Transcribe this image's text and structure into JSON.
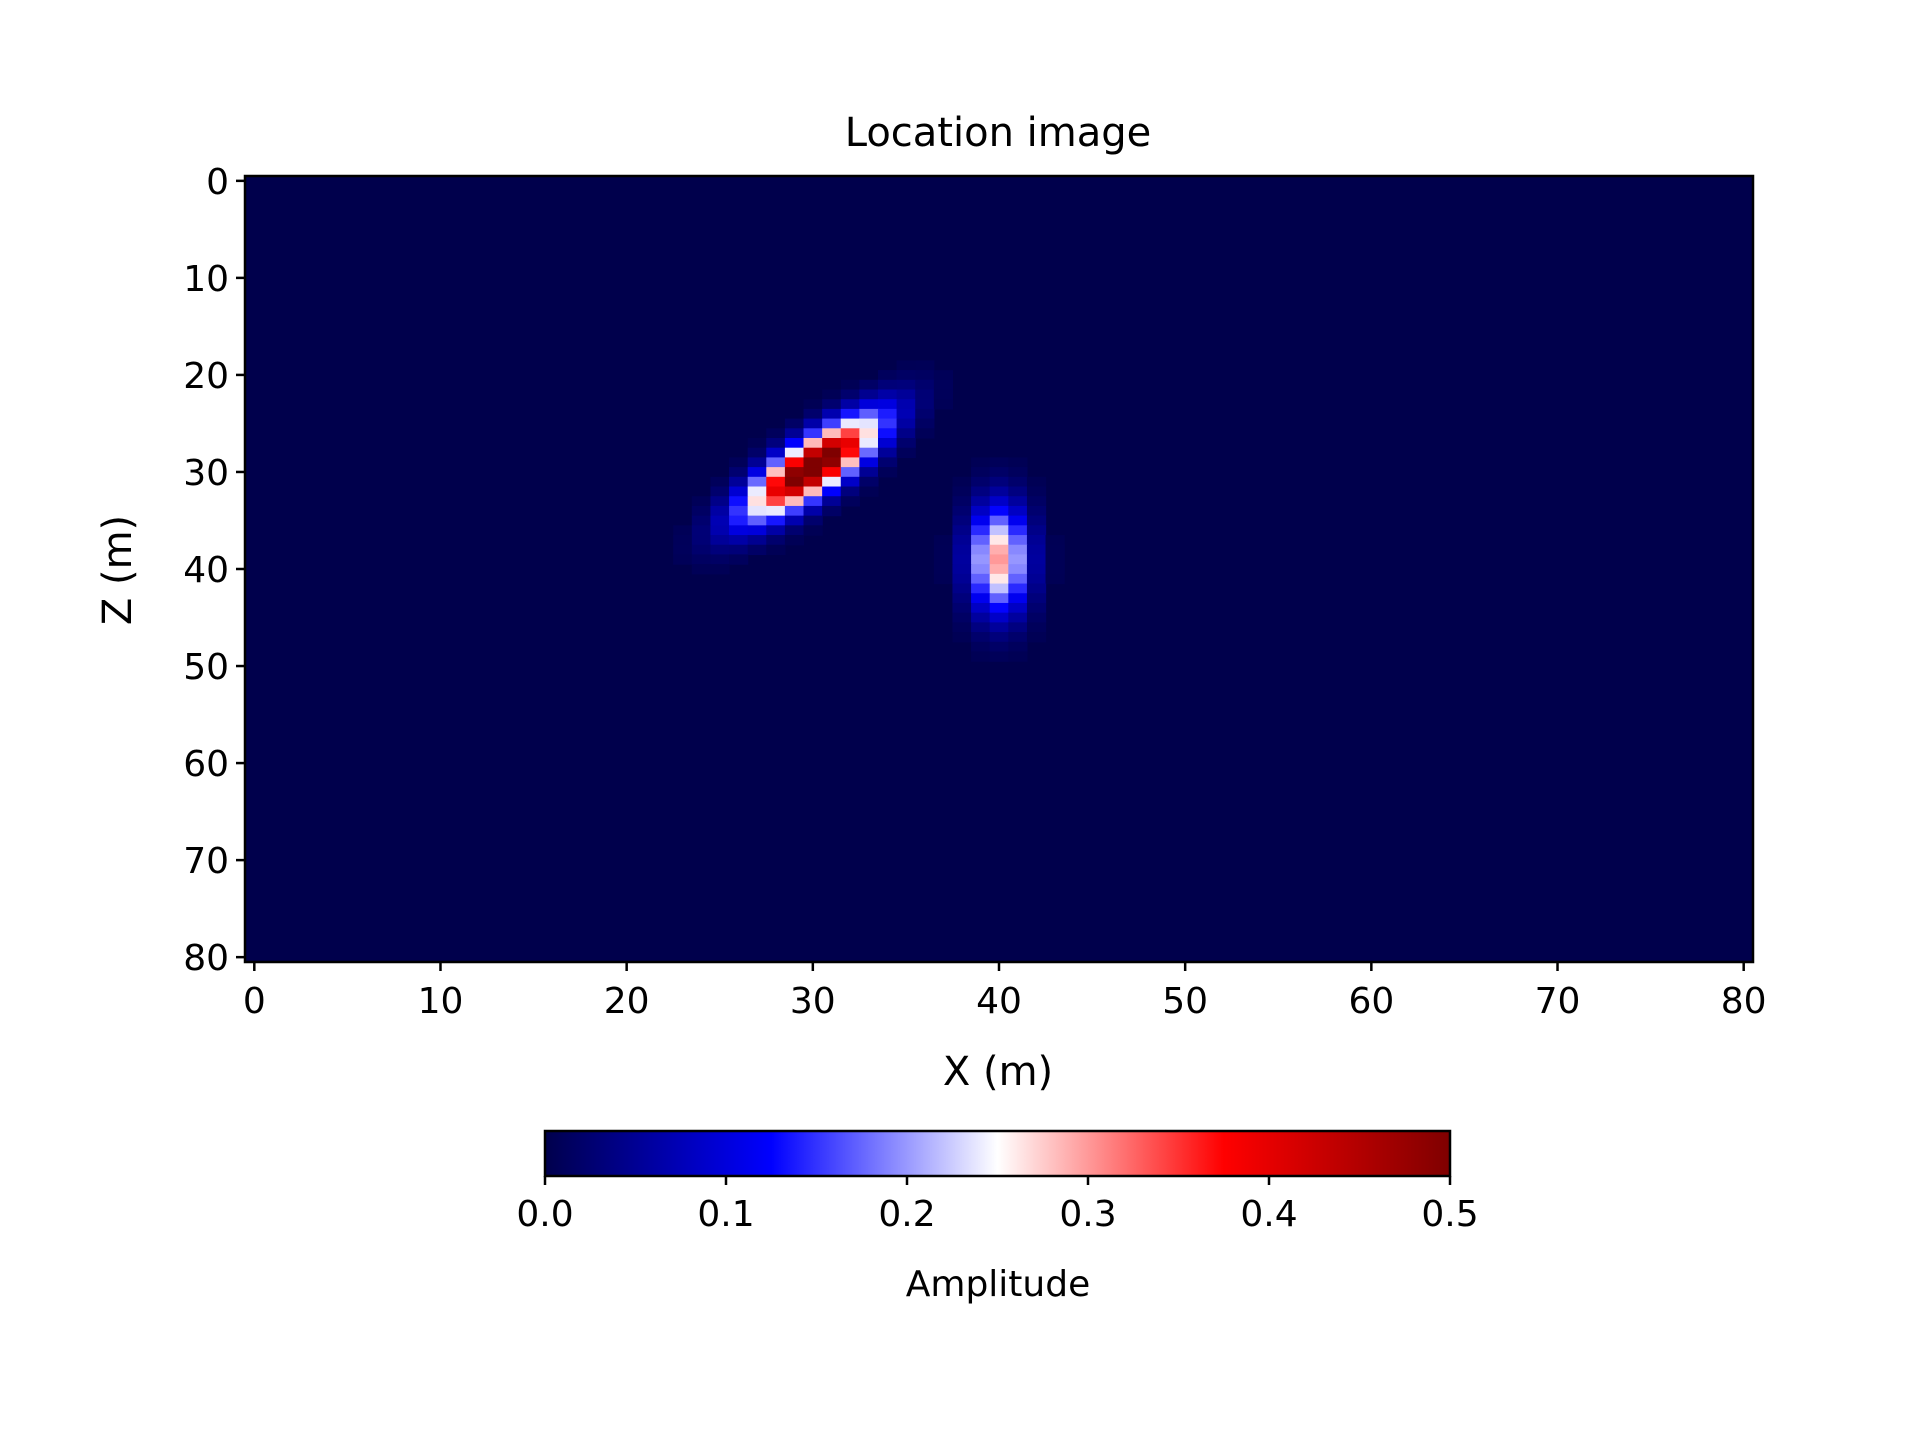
{
  "chart_data": {
    "type": "heatmap",
    "title": "Location image",
    "xlabel": "X (m)",
    "ylabel": "Z (m)",
    "xlim": [
      0,
      80
    ],
    "ylim": [
      0,
      80
    ],
    "y_inverted": true,
    "xticks": [
      0,
      10,
      20,
      30,
      40,
      50,
      60,
      70,
      80
    ],
    "yticks": [
      0,
      10,
      20,
      30,
      40,
      50,
      60,
      70,
      80
    ],
    "grid": false,
    "colormap": "seismic",
    "colormap_stops": [
      "#00004c",
      "#0000ff",
      "#ffffff",
      "#ff0000",
      "#7f0000"
    ],
    "colorbar": {
      "orientation": "horizontal",
      "label": "Amplitude",
      "range": [
        0.0,
        0.5
      ],
      "ticks": [
        "0.0",
        "0.1",
        "0.2",
        "0.3",
        "0.4",
        "0.5"
      ]
    },
    "sources": [
      {
        "x": 30,
        "z": 29.5,
        "peak_amplitude": 0.55,
        "sigma_x": 1.5,
        "sigma_z": 3.6,
        "tilt": -0.55
      },
      {
        "x": 40,
        "z": 39,
        "peak_amplitude": 0.3,
        "sigma_x": 1.1,
        "sigma_z": 3.8,
        "tilt": 0
      }
    ]
  }
}
